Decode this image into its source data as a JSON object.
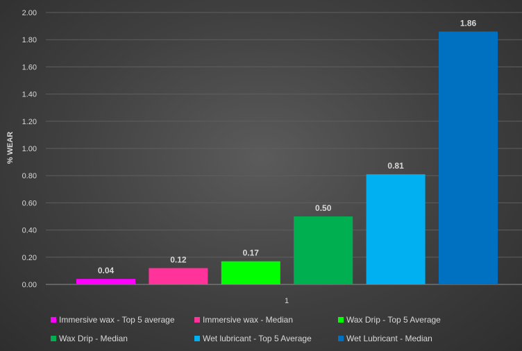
{
  "chart_data": {
    "type": "bar",
    "categories": [
      "1"
    ],
    "series": [
      {
        "name": "Immersive wax - Top 5 average",
        "values": [
          0.04
        ],
        "color": "#ff00ff"
      },
      {
        "name": "Immersive wax - Median",
        "values": [
          0.12
        ],
        "color": "#ff3399"
      },
      {
        "name": "Wax Drip - Top 5 Average",
        "values": [
          0.17
        ],
        "color": "#00ff00"
      },
      {
        "name": "Wax Drip -  Median",
        "values": [
          0.5
        ],
        "color": "#00b050"
      },
      {
        "name": "Wet lubricant - Top 5 Average",
        "values": [
          0.81
        ],
        "color": "#00b0f0"
      },
      {
        "name": "Wet Lubricant - Median",
        "values": [
          1.86
        ],
        "color": "#0070c0"
      }
    ],
    "data_labels": [
      "0.04",
      "0.12",
      "0.17",
      "0.50",
      "0.81",
      "1.86"
    ],
    "y_ticks": [
      "0.00",
      "0.20",
      "0.40",
      "0.60",
      "0.80",
      "1.00",
      "1.20",
      "1.40",
      "1.60",
      "1.80",
      "2.00"
    ],
    "ylim": [
      0,
      2.0
    ],
    "ylabel": "% WEAR",
    "xlabel": "",
    "title": "",
    "grid": true,
    "legend_position": "bottom"
  }
}
